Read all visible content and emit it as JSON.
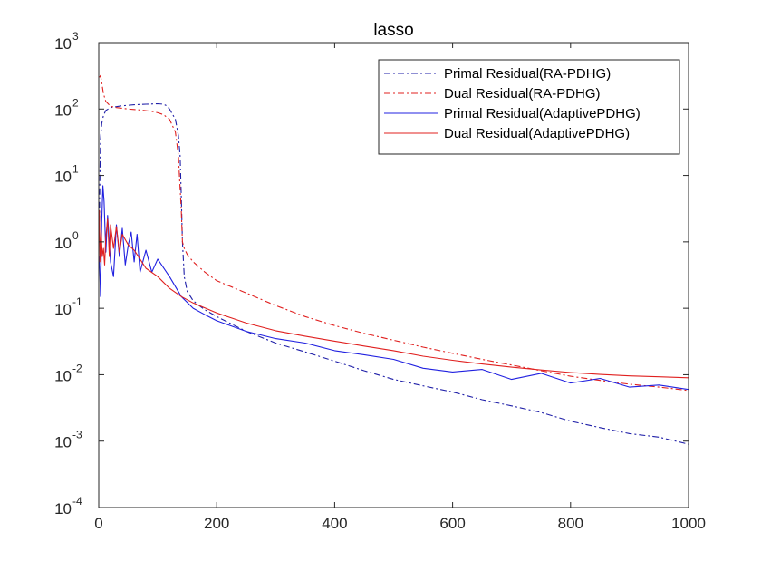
{
  "chart_data": {
    "type": "line",
    "title": "lasso",
    "xlabel": "",
    "ylabel": "",
    "xlim": [
      0,
      1000
    ],
    "ylim_log10": [
      -4,
      3
    ],
    "yscale": "log",
    "grid": false,
    "legend_position": "top-right",
    "x_ticks": [
      "0",
      "200",
      "400",
      "600",
      "800",
      "1000"
    ],
    "y_ticks": [
      {
        "base": "10",
        "exp": "-4"
      },
      {
        "base": "10",
        "exp": "-3"
      },
      {
        "base": "10",
        "exp": "-2"
      },
      {
        "base": "10",
        "exp": "-1"
      },
      {
        "base": "10",
        "exp": "0"
      },
      {
        "base": "10",
        "exp": "1"
      },
      {
        "base": "10",
        "exp": "2"
      },
      {
        "base": "10",
        "exp": "3"
      }
    ],
    "series": [
      {
        "name": "Primal Residual(RA-PDHG)",
        "color": "#1f1fa8",
        "dash": "dashdot",
        "x": [
          1,
          2,
          3,
          5,
          8,
          12,
          20,
          40,
          60,
          80,
          100,
          110,
          115,
          120,
          130,
          135,
          138,
          140,
          142,
          145,
          150,
          160,
          170,
          180,
          200,
          250,
          300,
          350,
          400,
          450,
          500,
          550,
          600,
          650,
          700,
          750,
          800,
          850,
          900,
          950,
          1000
        ],
        "y": [
          2,
          10,
          35,
          60,
          80,
          95,
          105,
          112,
          116,
          118,
          120,
          118,
          112,
          100,
          70,
          40,
          20,
          5,
          1.0,
          0.3,
          0.18,
          0.13,
          0.11,
          0.095,
          0.075,
          0.045,
          0.03,
          0.022,
          0.016,
          0.0115,
          0.0085,
          0.0068,
          0.0055,
          0.0042,
          0.0034,
          0.0027,
          0.002,
          0.0016,
          0.0013,
          0.00115,
          0.0009
        ]
      },
      {
        "name": "Dual Residual(RA-PDHG)",
        "color": "#e0201f",
        "dash": "dashdot",
        "x": [
          1,
          3,
          5,
          8,
          12,
          20,
          30,
          50,
          70,
          90,
          100,
          110,
          120,
          130,
          135,
          140,
          142,
          145,
          150,
          160,
          180,
          200,
          250,
          300,
          350,
          400,
          450,
          500,
          550,
          600,
          650,
          700,
          750,
          800,
          850,
          900,
          950,
          1000
        ],
        "y": [
          300,
          320,
          250,
          170,
          130,
          110,
          105,
          100,
          97,
          92,
          88,
          82,
          70,
          45,
          20,
          3,
          1.0,
          0.8,
          0.65,
          0.5,
          0.35,
          0.26,
          0.17,
          0.11,
          0.075,
          0.055,
          0.042,
          0.033,
          0.026,
          0.021,
          0.017,
          0.014,
          0.0115,
          0.0095,
          0.0082,
          0.0072,
          0.0065,
          0.0058
        ]
      },
      {
        "name": "Primal Residual(AdaptivePDHG)",
        "color": "#2020e0",
        "dash": "solid",
        "x": [
          1,
          3,
          5,
          7,
          9,
          12,
          15,
          20,
          25,
          30,
          35,
          40,
          45,
          50,
          55,
          60,
          65,
          70,
          80,
          90,
          100,
          120,
          140,
          160,
          180,
          200,
          250,
          300,
          350,
          400,
          450,
          500,
          550,
          600,
          650,
          700,
          750,
          800,
          850,
          900,
          950,
          1000
        ],
        "y": [
          0.6,
          0.15,
          2.0,
          7.0,
          4.0,
          0.7,
          2.5,
          0.5,
          0.3,
          1.8,
          0.6,
          1.6,
          0.45,
          0.9,
          1.4,
          0.5,
          1.3,
          0.35,
          0.75,
          0.35,
          0.55,
          0.3,
          0.15,
          0.1,
          0.08,
          0.065,
          0.045,
          0.035,
          0.03,
          0.023,
          0.02,
          0.017,
          0.0125,
          0.011,
          0.012,
          0.0085,
          0.0105,
          0.0075,
          0.0088,
          0.0065,
          0.007,
          0.006
        ]
      },
      {
        "name": "Dual Residual(AdaptivePDHG)",
        "color": "#e0201f",
        "dash": "solid",
        "x": [
          1,
          2,
          4,
          6,
          8,
          10,
          12,
          15,
          18,
          20,
          25,
          30,
          35,
          40,
          50,
          60,
          70,
          80,
          100,
          120,
          140,
          160,
          200,
          250,
          300,
          350,
          400,
          450,
          500,
          550,
          600,
          650,
          700,
          750,
          800,
          850,
          900,
          950,
          1000
        ],
        "y": [
          3,
          0.5,
          1.5,
          0.6,
          0.8,
          0.45,
          1.2,
          2.2,
          0.6,
          1.8,
          0.8,
          1.7,
          0.7,
          1.3,
          0.9,
          0.75,
          0.55,
          0.4,
          0.3,
          0.2,
          0.15,
          0.12,
          0.085,
          0.06,
          0.046,
          0.038,
          0.032,
          0.027,
          0.023,
          0.019,
          0.0165,
          0.0145,
          0.013,
          0.0118,
          0.0108,
          0.0101,
          0.0096,
          0.0093,
          0.009
        ]
      }
    ]
  }
}
